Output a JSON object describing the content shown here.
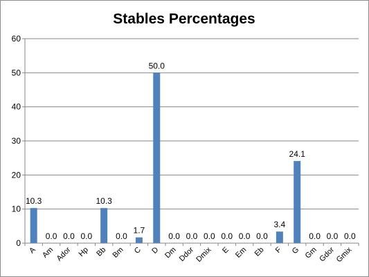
{
  "chart_data": {
    "type": "bar",
    "title": "Stables Percentages",
    "xlabel": "",
    "ylabel": "",
    "ylim": [
      0,
      60
    ],
    "yticks": [
      0,
      10,
      20,
      30,
      40,
      50,
      60
    ],
    "grid": true,
    "legend": "none",
    "bar_color": "#4f81bd",
    "categories": [
      "A",
      "Am",
      "Ador",
      "Hp",
      "Bb",
      "Bm",
      "C",
      "D",
      "Dm",
      "Ddor",
      "Dmix",
      "E",
      "Em",
      "Eb",
      "F",
      "G",
      "Gm",
      "Gdor",
      "Gmix"
    ],
    "values": [
      10.3,
      0.0,
      0.0,
      0.0,
      10.3,
      0.0,
      1.7,
      50.0,
      0.0,
      0.0,
      0.0,
      0.0,
      0.0,
      0.0,
      3.4,
      24.1,
      0.0,
      0.0,
      0.0
    ],
    "data_labels": [
      "10.3",
      "0.0",
      "0.0",
      "0.0",
      "10.3",
      "0.0",
      "1.7",
      "50.0",
      "0.0",
      "0.0",
      "0.0",
      "0.0",
      "0.0",
      "0.0",
      "3.4",
      "24.1",
      "0.0",
      "0.0",
      "0.0"
    ]
  }
}
